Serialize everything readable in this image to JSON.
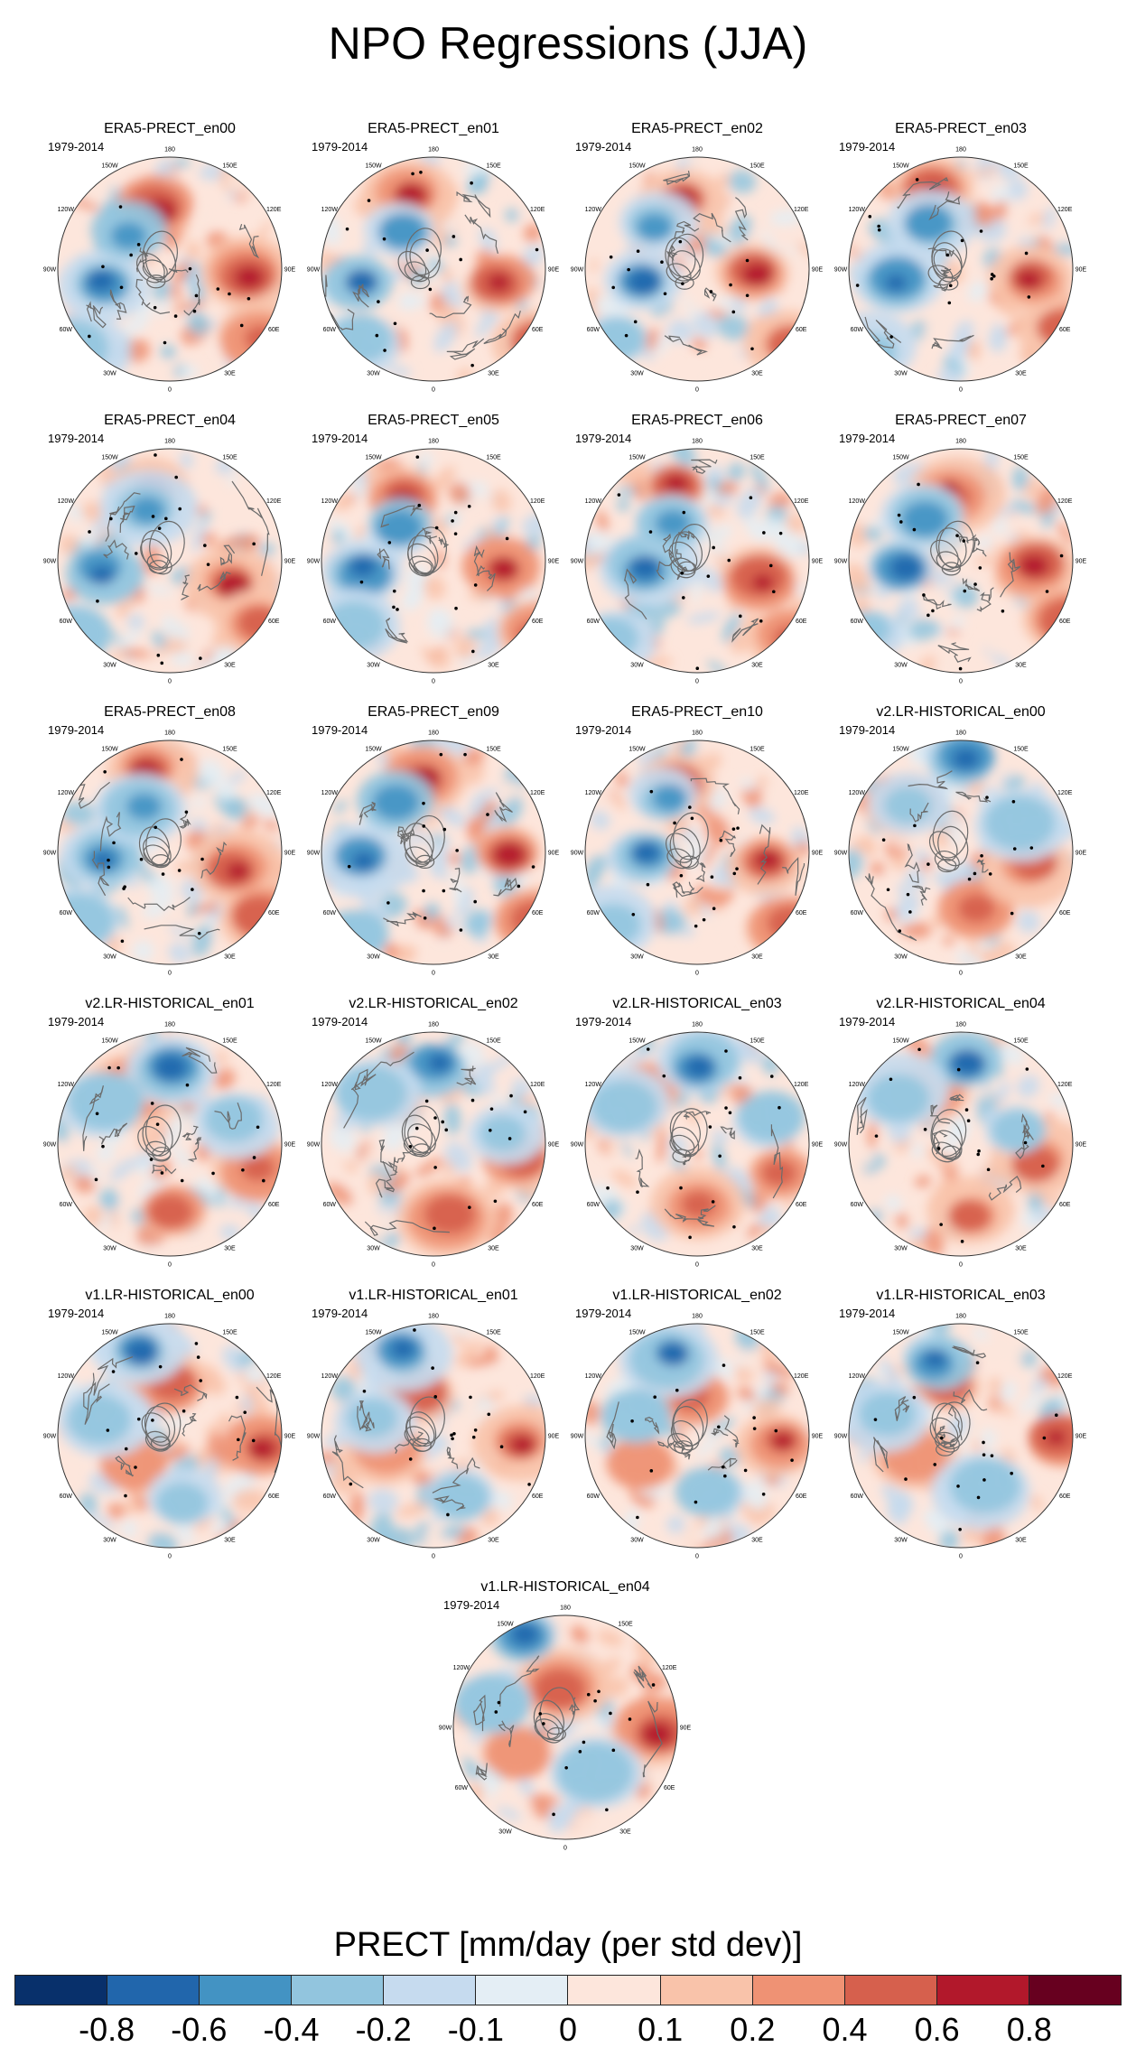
{
  "figure": {
    "title": "NPO Regressions (JJA)",
    "colorbar_title": "PRECT [mm/day (per std dev)]"
  },
  "chart_data": {
    "type": "heatmap",
    "projection": "north polar stereographic",
    "variable": "PRECT",
    "units": "mm/day (per std dev)",
    "period": "1979-2014",
    "longitude_labels": [
      "180",
      "150E",
      "120E",
      "90E",
      "60E",
      "30E",
      "0",
      "30W",
      "60W",
      "90W",
      "120W",
      "150W"
    ],
    "panels": [
      {
        "title": "ERA5-PRECT_en00",
        "period": "1979-2014",
        "group": "obs"
      },
      {
        "title": "ERA5-PRECT_en01",
        "period": "1979-2014",
        "group": "obs"
      },
      {
        "title": "ERA5-PRECT_en02",
        "period": "1979-2014",
        "group": "obs"
      },
      {
        "title": "ERA5-PRECT_en03",
        "period": "1979-2014",
        "group": "obs"
      },
      {
        "title": "ERA5-PRECT_en04",
        "period": "1979-2014",
        "group": "obs"
      },
      {
        "title": "ERA5-PRECT_en05",
        "period": "1979-2014",
        "group": "obs"
      },
      {
        "title": "ERA5-PRECT_en06",
        "period": "1979-2014",
        "group": "obs"
      },
      {
        "title": "ERA5-PRECT_en07",
        "period": "1979-2014",
        "group": "obs"
      },
      {
        "title": "ERA5-PRECT_en08",
        "period": "1979-2014",
        "group": "obs"
      },
      {
        "title": "ERA5-PRECT_en09",
        "period": "1979-2014",
        "group": "obs"
      },
      {
        "title": "ERA5-PRECT_en10",
        "period": "1979-2014",
        "group": "obs"
      },
      {
        "title": "v2.LR-HISTORICAL_en00",
        "period": "1979-2014",
        "group": "v2"
      },
      {
        "title": "v2.LR-HISTORICAL_en01",
        "period": "1979-2014",
        "group": "v2"
      },
      {
        "title": "v2.LR-HISTORICAL_en02",
        "period": "1979-2014",
        "group": "v2"
      },
      {
        "title": "v2.LR-HISTORICAL_en03",
        "period": "1979-2014",
        "group": "v2"
      },
      {
        "title": "v2.LR-HISTORICAL_en04",
        "period": "1979-2014",
        "group": "v2"
      },
      {
        "title": "v1.LR-HISTORICAL_en00",
        "period": "1979-2014",
        "group": "v1"
      },
      {
        "title": "v1.LR-HISTORICAL_en01",
        "period": "1979-2014",
        "group": "v1"
      },
      {
        "title": "v1.LR-HISTORICAL_en02",
        "period": "1979-2014",
        "group": "v1"
      },
      {
        "title": "v1.LR-HISTORICAL_en03",
        "period": "1979-2014",
        "group": "v1"
      },
      {
        "title": "v1.LR-HISTORICAL_en04",
        "period": "1979-2014",
        "group": "v1"
      }
    ],
    "colorbar": {
      "levels": [
        "-0.8",
        "-0.6",
        "-0.4",
        "-0.2",
        "-0.1",
        "0",
        "0.1",
        "0.2",
        "0.4",
        "0.6",
        "0.8"
      ],
      "colors": [
        "#08306b",
        "#2166ac",
        "#4393c3",
        "#92c5de",
        "#c6dbef",
        "#e4eef5",
        "#fde6dc",
        "#f9c3aa",
        "#ef9274",
        "#d6604d",
        "#b2182b",
        "#67001f"
      ]
    }
  }
}
